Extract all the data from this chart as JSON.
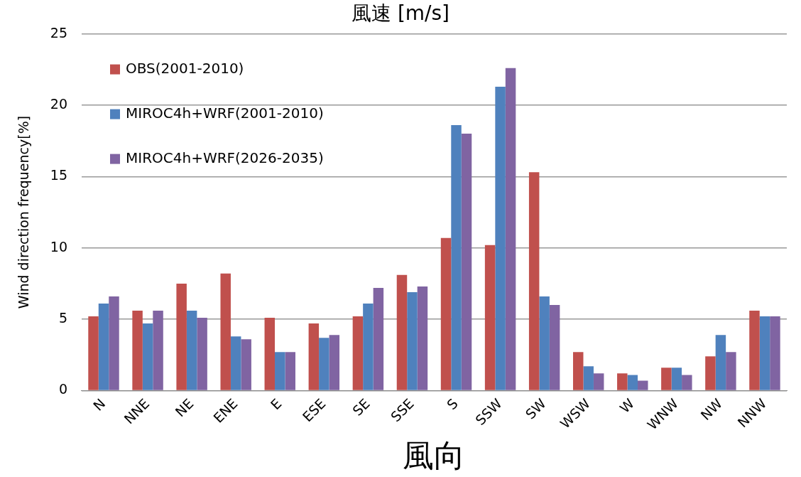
{
  "chart_data": {
    "type": "bar",
    "title": "風速 [m/s]",
    "xlabel": "風向",
    "ylabel": "Wind direction frequency[%]",
    "categories": [
      "N",
      "NNE",
      "NE",
      "ENE",
      "E",
      "ESE",
      "SE",
      "SSE",
      "S",
      "SSW",
      "SW",
      "WSW",
      "W",
      "WNW",
      "NW",
      "NNW"
    ],
    "series": [
      {
        "name": "OBS(2001-2010)",
        "color": "#c0504d",
        "values": [
          5.2,
          5.6,
          7.5,
          8.2,
          5.1,
          4.7,
          5.2,
          8.1,
          10.7,
          10.2,
          15.3,
          2.7,
          1.2,
          1.6,
          2.4,
          5.6
        ]
      },
      {
        "name": "MIROC4h+WRF(2001-2010)",
        "color": "#4f81bd",
        "values": [
          6.1,
          4.7,
          5.6,
          3.8,
          2.7,
          3.7,
          6.1,
          6.9,
          18.6,
          21.3,
          6.6,
          1.7,
          1.1,
          1.6,
          3.9,
          5.2
        ]
      },
      {
        "name": "MIROC4h+WRF(2026-2035)",
        "color": "#8064a2",
        "values": [
          6.6,
          5.6,
          5.1,
          3.6,
          2.7,
          3.9,
          7.2,
          7.3,
          18.0,
          22.6,
          6.0,
          1.2,
          0.7,
          1.1,
          2.7,
          5.2
        ]
      }
    ],
    "ylim": [
      0,
      25
    ],
    "yticks": [
      0,
      5,
      10,
      15,
      20,
      25
    ],
    "grid": "y",
    "legend": "top left"
  }
}
